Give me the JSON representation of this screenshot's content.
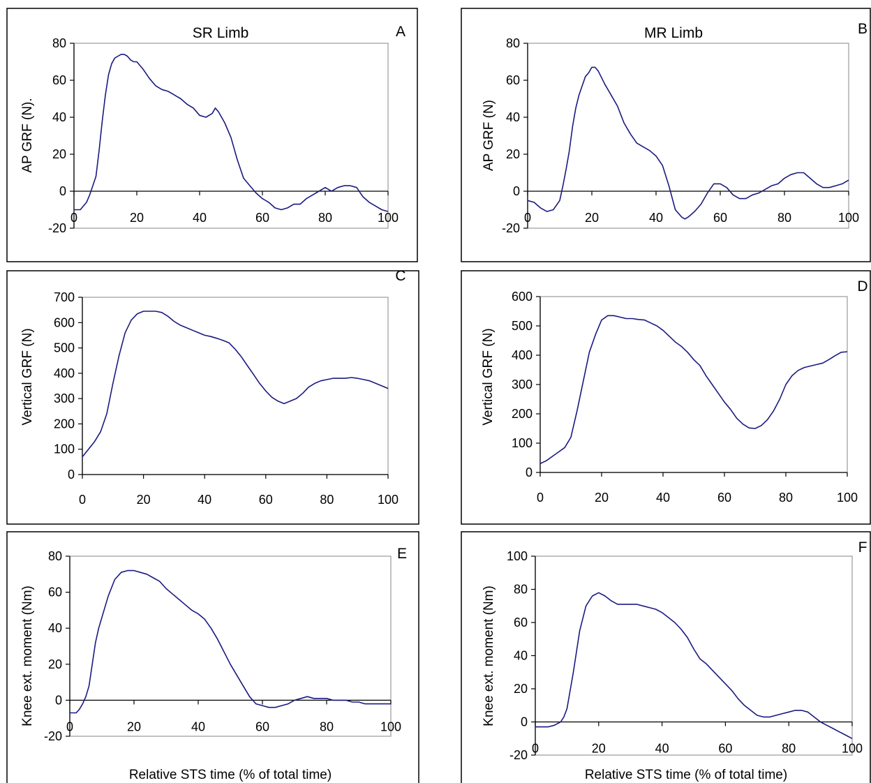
{
  "colors": {
    "series": "#1a1a80",
    "plot_border": "#999999",
    "axis": "#000000"
  },
  "chart_data": [
    {
      "type": "line",
      "panel": "A",
      "title": "SR Limb",
      "xlabel": "",
      "ylabel": "AP GRF  (N).",
      "xlim": [
        0,
        100
      ],
      "ylim": [
        -20,
        80
      ],
      "xticks": [
        0,
        20,
        40,
        60,
        80,
        100
      ],
      "yticks": [
        -20,
        0,
        20,
        40,
        60,
        80
      ],
      "grid": false,
      "legend": "none",
      "series": [
        {
          "x": [
            0,
            2,
            4,
            5,
            6,
            7,
            8,
            9,
            10,
            11,
            12,
            13,
            14,
            15,
            16,
            17,
            18,
            19,
            20,
            22,
            24,
            26,
            28,
            30,
            32,
            34,
            36,
            38,
            40,
            42,
            44,
            45,
            46,
            48,
            50,
            52,
            54,
            56,
            58,
            60,
            62,
            64,
            66,
            68,
            70,
            72,
            74,
            76,
            78,
            80,
            82,
            84,
            86,
            88,
            90,
            92,
            94,
            96,
            98,
            100
          ],
          "y": [
            -10,
            -10,
            -6,
            -2,
            3,
            8,
            22,
            38,
            52,
            63,
            69,
            72,
            73,
            74,
            74,
            73,
            71,
            70,
            70,
            66,
            61,
            57,
            55,
            54,
            52,
            50,
            47,
            45,
            41,
            40,
            42,
            45,
            43,
            37,
            29,
            17,
            7,
            3,
            -1,
            -4,
            -6,
            -9,
            -10,
            -9,
            -7,
            -7,
            -4,
            -2,
            0,
            2,
            0,
            2,
            3,
            3,
            2,
            -3,
            -6,
            -8,
            -10,
            -11
          ]
        }
      ]
    },
    {
      "type": "line",
      "panel": "B",
      "title": "MR Limb",
      "xlabel": "",
      "ylabel": "AP GRF  (N)",
      "xlim": [
        0,
        100
      ],
      "ylim": [
        -20,
        80
      ],
      "xticks": [
        0,
        20,
        40,
        60,
        80,
        100
      ],
      "yticks": [
        -20,
        0,
        20,
        40,
        60,
        80
      ],
      "grid": false,
      "legend": "none",
      "series": [
        {
          "x": [
            0,
            2,
            4,
            6,
            8,
            10,
            11,
            12,
            13,
            14,
            15,
            16,
            17,
            18,
            19,
            20,
            21,
            22,
            24,
            26,
            28,
            30,
            32,
            34,
            36,
            38,
            40,
            42,
            44,
            46,
            48,
            49,
            50,
            52,
            54,
            56,
            58,
            60,
            62,
            64,
            66,
            68,
            70,
            72,
            74,
            76,
            78,
            80,
            82,
            84,
            86,
            88,
            90,
            92,
            94,
            96,
            98,
            100
          ],
          "y": [
            -5,
            -6,
            -9,
            -11,
            -10,
            -5,
            3,
            12,
            22,
            35,
            45,
            52,
            57,
            62,
            64,
            67,
            67,
            65,
            58,
            52,
            46,
            37,
            31,
            26,
            24,
            22,
            19,
            14,
            3,
            -10,
            -14,
            -15,
            -14,
            -11,
            -7,
            -1,
            4,
            4,
            2,
            -2,
            -4,
            -4,
            -2,
            -1,
            1,
            3,
            4,
            7,
            9,
            10,
            10,
            7,
            4,
            2,
            2,
            3,
            4,
            6
          ]
        }
      ]
    },
    {
      "type": "line",
      "panel": "C",
      "title": "",
      "xlabel": "",
      "ylabel": "Vertical GRF  (N)",
      "xlim": [
        0,
        100
      ],
      "ylim": [
        0,
        700
      ],
      "xticks": [
        0,
        20,
        40,
        60,
        80,
        100
      ],
      "yticks": [
        0,
        100,
        200,
        300,
        400,
        500,
        600,
        700
      ],
      "grid": false,
      "legend": "none",
      "series": [
        {
          "x": [
            0,
            2,
            4,
            6,
            8,
            10,
            12,
            14,
            16,
            18,
            20,
            22,
            24,
            26,
            28,
            30,
            32,
            34,
            36,
            38,
            40,
            42,
            44,
            46,
            48,
            50,
            52,
            54,
            56,
            58,
            60,
            62,
            64,
            66,
            68,
            70,
            72,
            74,
            76,
            78,
            80,
            82,
            84,
            86,
            88,
            90,
            92,
            94,
            96,
            98,
            100
          ],
          "y": [
            70,
            100,
            130,
            170,
            240,
            360,
            470,
            560,
            610,
            635,
            645,
            645,
            645,
            640,
            625,
            605,
            590,
            580,
            570,
            560,
            550,
            545,
            538,
            530,
            520,
            495,
            465,
            430,
            395,
            360,
            330,
            305,
            290,
            280,
            290,
            300,
            320,
            345,
            360,
            370,
            375,
            380,
            380,
            380,
            383,
            380,
            375,
            370,
            360,
            350,
            340
          ]
        }
      ]
    },
    {
      "type": "line",
      "panel": "D",
      "title": "",
      "xlabel": "",
      "ylabel": "Vertical GRF  (N)",
      "xlim": [
        0,
        100
      ],
      "ylim": [
        0,
        600
      ],
      "xticks": [
        0,
        20,
        40,
        60,
        80,
        100
      ],
      "yticks": [
        0,
        100,
        200,
        300,
        400,
        500,
        600
      ],
      "grid": false,
      "legend": "none",
      "series": [
        {
          "x": [
            0,
            2,
            4,
            6,
            8,
            10,
            12,
            14,
            16,
            18,
            20,
            22,
            24,
            26,
            28,
            30,
            32,
            34,
            36,
            38,
            40,
            42,
            44,
            46,
            48,
            50,
            52,
            54,
            56,
            58,
            60,
            62,
            64,
            66,
            68,
            70,
            72,
            74,
            76,
            78,
            80,
            82,
            84,
            86,
            88,
            90,
            92,
            94,
            96,
            98,
            100
          ],
          "y": [
            30,
            40,
            55,
            70,
            85,
            120,
            210,
            310,
            410,
            470,
            520,
            535,
            535,
            530,
            525,
            525,
            522,
            520,
            510,
            500,
            485,
            465,
            445,
            430,
            410,
            385,
            365,
            330,
            300,
            270,
            240,
            215,
            185,
            165,
            152,
            150,
            160,
            180,
            210,
            250,
            300,
            330,
            348,
            358,
            363,
            368,
            373,
            385,
            398,
            410,
            412
          ]
        }
      ]
    },
    {
      "type": "line",
      "panel": "E",
      "title": "",
      "xlabel": "Relative STS time (% of total time)",
      "ylabel": "Knee ext. moment (Nm)",
      "xlim": [
        0,
        100
      ],
      "ylim": [
        -20,
        80
      ],
      "xticks": [
        0,
        20,
        40,
        60,
        80,
        100
      ],
      "yticks": [
        -20,
        0,
        20,
        40,
        60,
        80
      ],
      "grid": false,
      "legend": "none",
      "series": [
        {
          "x": [
            0,
            2,
            3,
            4,
            5,
            6,
            7,
            8,
            9,
            10,
            12,
            14,
            16,
            18,
            20,
            22,
            24,
            26,
            28,
            30,
            32,
            34,
            36,
            38,
            40,
            42,
            44,
            46,
            48,
            50,
            52,
            54,
            56,
            58,
            60,
            62,
            64,
            66,
            68,
            70,
            72,
            74,
            76,
            78,
            80,
            82,
            84,
            86,
            88,
            90,
            92,
            94,
            96,
            98,
            100
          ],
          "y": [
            -7,
            -7,
            -5,
            -2,
            2,
            8,
            20,
            32,
            40,
            46,
            58,
            67,
            71,
            72,
            72,
            71,
            70,
            68,
            66,
            62,
            59,
            56,
            53,
            50,
            48,
            45,
            40,
            34,
            27,
            20,
            14,
            8,
            2,
            -2,
            -3,
            -4,
            -4,
            -3,
            -2,
            0,
            1,
            2,
            1,
            1,
            1,
            0,
            0,
            0,
            -1,
            -1,
            -2,
            -2,
            -2,
            -2,
            -2
          ]
        }
      ]
    },
    {
      "type": "line",
      "panel": "F",
      "title": "",
      "xlabel": "Relative STS time (% of total time)",
      "ylabel": "Knee ext. moment (Nm)",
      "xlim": [
        0,
        100
      ],
      "ylim": [
        -20,
        100
      ],
      "xticks": [
        0,
        20,
        40,
        60,
        80,
        100
      ],
      "yticks": [
        -20,
        0,
        20,
        40,
        60,
        80,
        100
      ],
      "grid": false,
      "legend": "none",
      "series": [
        {
          "x": [
            0,
            2,
            4,
            6,
            8,
            9,
            10,
            12,
            14,
            16,
            18,
            20,
            22,
            24,
            26,
            28,
            30,
            32,
            34,
            36,
            38,
            40,
            42,
            44,
            46,
            48,
            50,
            52,
            54,
            56,
            58,
            60,
            62,
            64,
            66,
            68,
            70,
            72,
            74,
            76,
            78,
            80,
            82,
            84,
            86,
            88,
            90,
            92,
            94,
            96,
            98,
            100
          ],
          "y": [
            -3,
            -3,
            -3,
            -2,
            0,
            3,
            8,
            30,
            55,
            70,
            76,
            78,
            76,
            73,
            71,
            71,
            71,
            71,
            70,
            69,
            68,
            66,
            63,
            60,
            56,
            51,
            44,
            38,
            35,
            31,
            27,
            23,
            19,
            14,
            10,
            7,
            4,
            3,
            3,
            4,
            5,
            6,
            7,
            7,
            6,
            3,
            0,
            -2,
            -4,
            -6,
            -8,
            -10
          ]
        }
      ]
    }
  ]
}
